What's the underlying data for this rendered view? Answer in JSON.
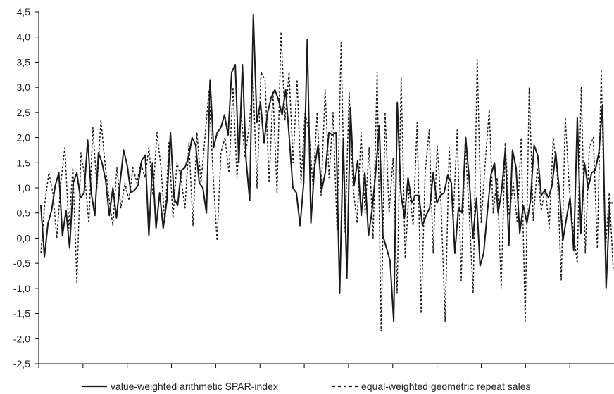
{
  "chart_data": {
    "type": "line",
    "title": "",
    "xlabel": "",
    "ylabel": "",
    "ylim": [
      -2.5,
      4.5
    ],
    "yticks": [
      "4,5",
      "4,0",
      "3,5",
      "3,0",
      "2,5",
      "2,0",
      "1,5",
      "1,0",
      "0,5",
      "0,0",
      "-0,5",
      "-1,0",
      "-1,5",
      "-2,0",
      "-2,5"
    ],
    "ytick_values": [
      4.5,
      4.0,
      3.5,
      3.0,
      2.5,
      2.0,
      1.5,
      1.0,
      0.5,
      0.0,
      -0.5,
      -1.0,
      -1.5,
      -2.0,
      -2.5
    ],
    "x_minor_ticks": 13,
    "grid": false,
    "legend_position": "bottom",
    "colors": {
      "series": "#1a1a1a",
      "axis": "#000000",
      "background": "#ffffff"
    },
    "series": [
      {
        "name": "value-weighted arithmetic SPAR-index",
        "style": "solid",
        "values": [
          0.65,
          -0.37,
          0.3,
          0.55,
          1.05,
          1.3,
          0.05,
          0.55,
          -0.2,
          1.1,
          1.3,
          0.8,
          0.9,
          1.95,
          0.9,
          0.45,
          1.7,
          1.5,
          1.15,
          0.45,
          1.0,
          0.4,
          1.1,
          1.75,
          1.45,
          0.9,
          0.95,
          1.05,
          1.55,
          1.65,
          0.05,
          1.5,
          0.2,
          0.9,
          0.2,
          0.75,
          2.1,
          0.8,
          0.65,
          1.35,
          1.4,
          1.6,
          2.0,
          1.85,
          1.1,
          1.0,
          0.5,
          3.15,
          1.8,
          2.1,
          2.2,
          2.45,
          2.05,
          3.3,
          3.45,
          1.5,
          3.45,
          1.55,
          0.75,
          4.45,
          2.3,
          2.7,
          1.9,
          2.5,
          2.8,
          2.95,
          2.75,
          2.45,
          2.95,
          2.0,
          1.0,
          0.9,
          0.25,
          1.1,
          3.95,
          0.3,
          1.4,
          1.85,
          0.95,
          1.3,
          2.1,
          2.05,
          2.1,
          -1.1,
          1.95,
          -0.8,
          2.6,
          1.05,
          1.55,
          0.45,
          1.3,
          0.05,
          0.55,
          1.3,
          2.25,
          0.05,
          -0.2,
          -0.45,
          -1.65,
          2.7,
          0.9,
          0.4,
          1.2,
          0.7,
          0.85,
          0.85,
          0.25,
          0.45,
          0.6,
          1.3,
          0.7,
          0.85,
          0.9,
          1.25,
          1.1,
          -0.3,
          0.6,
          0.5,
          2.0,
          1.15,
          0.0,
          0.8,
          -0.55,
          -0.3,
          0.5,
          1.25,
          1.5,
          0.5,
          0.95,
          1.75,
          -0.15,
          1.75,
          1.4,
          0.1,
          0.65,
          0.3,
          0.75,
          1.85,
          1.65,
          0.85,
          0.95,
          0.8,
          1.05,
          1.7,
          0.95,
          -0.05,
          0.4,
          0.8,
          -0.25,
          2.4,
          0.1,
          1.5,
          1.0,
          1.3,
          1.35,
          1.7,
          2.65,
          -1.0,
          0.7,
          0.7
        ]
      },
      {
        "name": "equal-weighted geometric repeat sales",
        "style": "dashed",
        "values": [
          -0.3,
          0.7,
          1.3,
          0.9,
          0.0,
          1.1,
          1.8,
          0.2,
          1.4,
          -0.9,
          1.7,
          1.2,
          0.3,
          2.2,
          1.0,
          2.35,
          1.5,
          0.8,
          0.25,
          1.4,
          0.6,
          1.1,
          0.75,
          1.4,
          1.1,
          1.5,
          1.2,
          1.8,
          0.85,
          2.1,
          1.4,
          0.3,
          1.9,
          0.4,
          1.5,
          1.2,
          0.6,
          1.9,
          0.25,
          2.1,
          1.1,
          2.0,
          2.95,
          1.3,
          -0.05,
          1.7,
          2.0,
          1.3,
          3.0,
          1.2,
          2.5,
          1.6,
          2.2,
          3.15,
          1.0,
          3.3,
          3.15,
          1.1,
          2.9,
          0.9,
          4.1,
          2.35,
          3.3,
          1.5,
          3.15,
          1.1,
          2.5,
          2.1,
          1.0,
          2.5,
          0.85,
          2.95,
          1.2,
          2.5,
          0.15,
          3.9,
          0.1,
          2.9,
          1.0,
          0.3,
          2.1,
          0.5,
          1.8,
          0.0,
          3.3,
          -1.85,
          2.5,
          0.5,
          1.6,
          -1.1,
          3.2,
          -0.4,
          1.0,
          0.25,
          2.3,
          -1.5,
          1.3,
          2.15,
          -0.3,
          1.85,
          0.65,
          -1.65,
          1.8,
          0.4,
          2.15,
          -0.85,
          1.9,
          0.5,
          -1.1,
          3.55,
          0.3,
          1.5,
          2.55,
          0.5,
          1.2,
          -1.0,
          1.9,
          0.45,
          1.1,
          0.3,
          2.0,
          -1.65,
          3.0,
          0.35,
          1.4,
          0.55,
          1.0,
          0.2,
          2.0,
          1.3,
          -0.85,
          2.4,
          1.0,
          0.15,
          -0.5,
          3.0,
          -0.3,
          1.8,
          2.0,
          -0.2,
          3.35,
          -0.3,
          0.9,
          -0.65
        ]
      }
    ]
  }
}
